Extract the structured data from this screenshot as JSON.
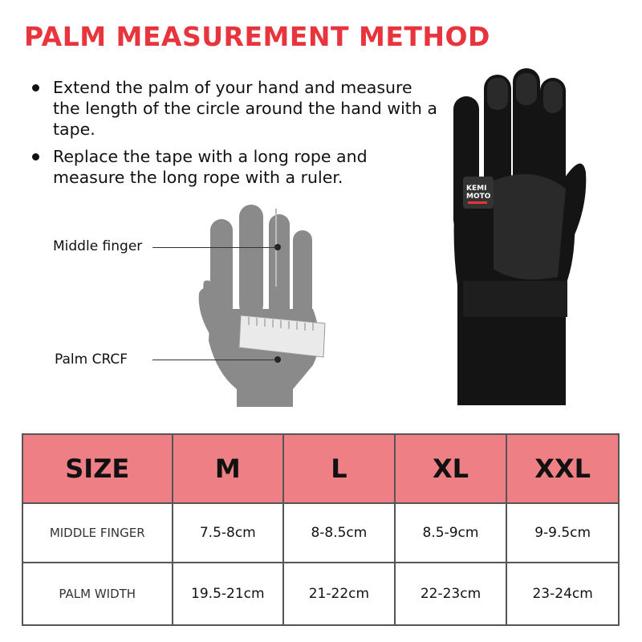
{
  "title": "PALM MEASUREMENT METHOD",
  "instructions": [
    "Extend the palm of your hand and measure the length of the circle around the hand with a tape.",
    "Replace the tape with a long rope and measure the long rope with a ruler."
  ],
  "diagram": {
    "middle_finger_label": "Middle finger",
    "palm_label": "Palm CRCF"
  },
  "product": {
    "logo_text": "KEMI MOTO"
  },
  "colors": {
    "title": "#e8343c",
    "table_header": "#ee7f85"
  },
  "table": {
    "headers": [
      "SIZE",
      "M",
      "L",
      "XL",
      "XXL"
    ],
    "rows": [
      {
        "label": "MIDDLE FINGER",
        "values": [
          "7.5-8cm",
          "8-8.5cm",
          "8.5-9cm",
          "9-9.5cm"
        ]
      },
      {
        "label": "PALM WIDTH",
        "values": [
          "19.5-21cm",
          "21-22cm",
          "22-23cm",
          "23-24cm"
        ]
      }
    ]
  }
}
